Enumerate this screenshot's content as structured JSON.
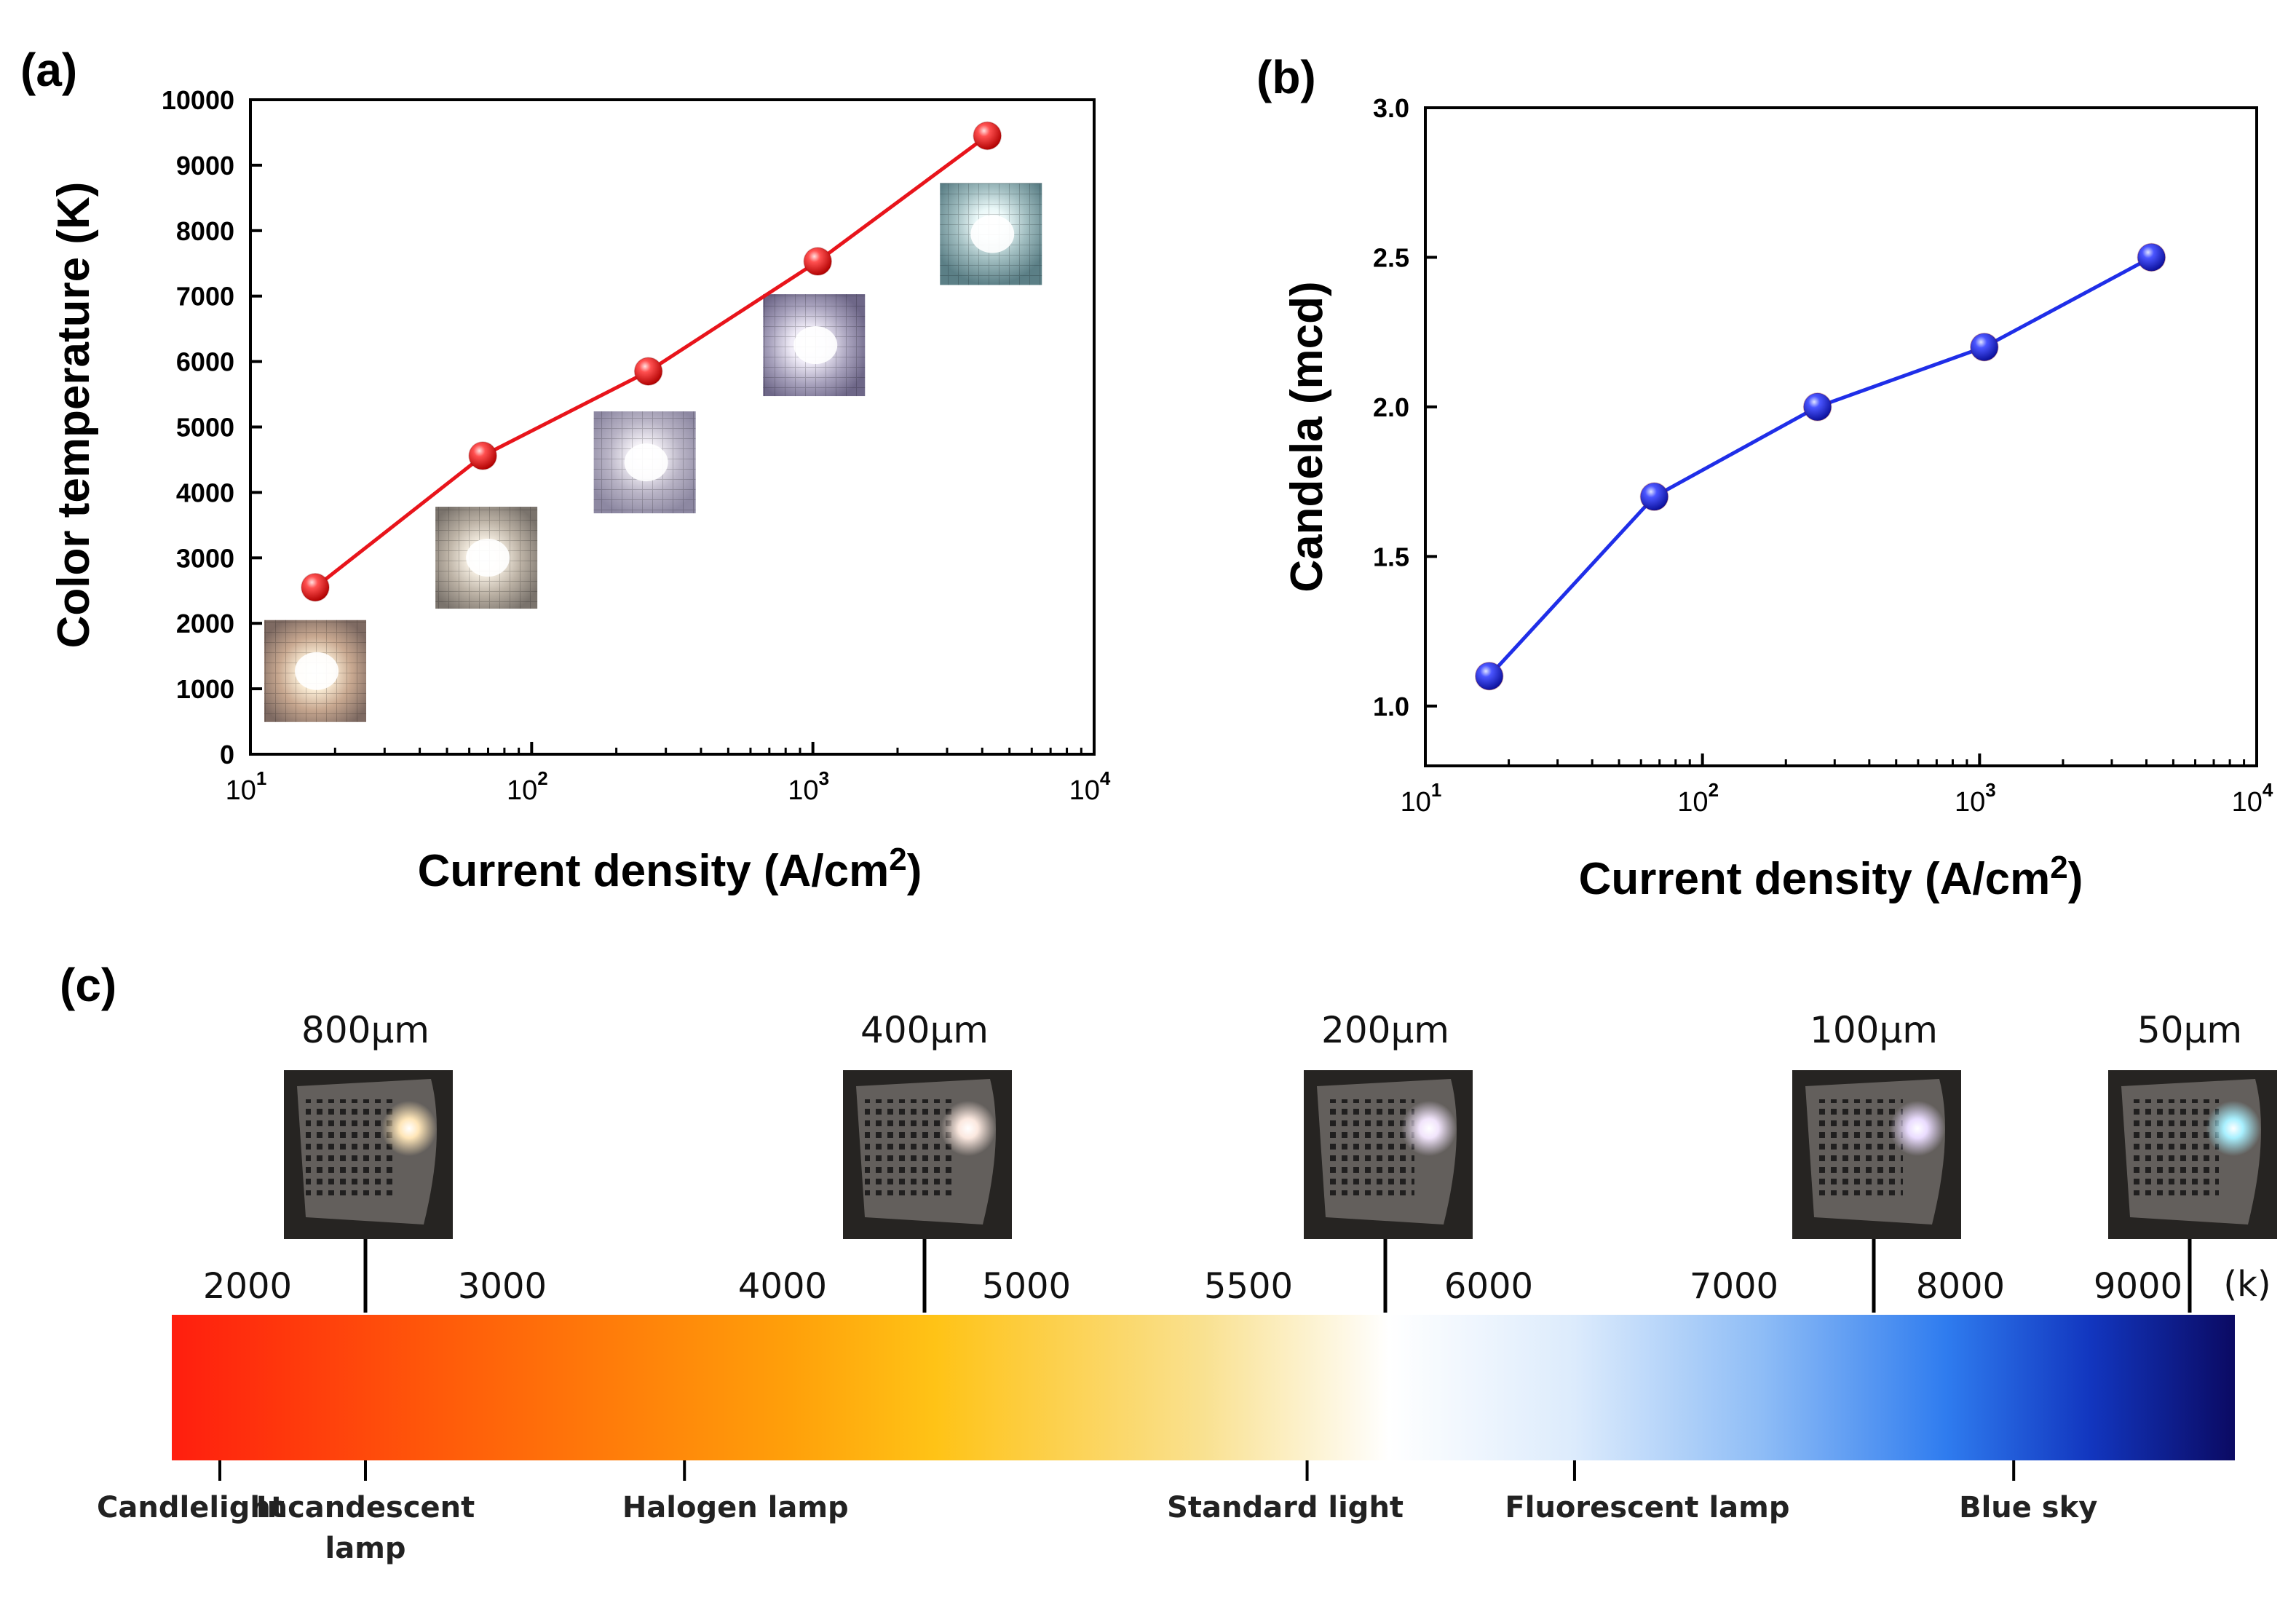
{
  "panels": {
    "a": "(a)",
    "b": "(b)",
    "c": "(c)"
  },
  "colors": {
    "series_a": "#e8141b",
    "series_b": "#1f2ee8",
    "axis": "#000000"
  },
  "chart_data": [
    {
      "id": "a",
      "type": "line",
      "title": "",
      "xlabel": "Current density (A/cm",
      "xlabel_sup": "2",
      "xlabel_end": ")",
      "ylabel": "Color temperature (K)",
      "xscale": "log",
      "xlim": [
        10,
        10000
      ],
      "ylim": [
        0,
        10000
      ],
      "x_ticks": [
        {
          "value": 10,
          "base": "10",
          "exp": "1"
        },
        {
          "value": 100,
          "base": "10",
          "exp": "2"
        },
        {
          "value": 1000,
          "base": "10",
          "exp": "3"
        },
        {
          "value": 10000,
          "base": "10",
          "exp": "4"
        }
      ],
      "y_ticks": [
        {
          "value": 0,
          "label": "0"
        },
        {
          "value": 1000,
          "label": "1000"
        },
        {
          "value": 2000,
          "label": "2000"
        },
        {
          "value": 3000,
          "label": "3000"
        },
        {
          "value": 4000,
          "label": "4000"
        },
        {
          "value": 5000,
          "label": "5000"
        },
        {
          "value": 6000,
          "label": "6000"
        },
        {
          "value": 7000,
          "label": "7000"
        },
        {
          "value": 8000,
          "label": "8000"
        },
        {
          "value": 9000,
          "label": "9000"
        },
        {
          "value": 10000,
          "label": "10000"
        }
      ],
      "series": [
        {
          "name": "Color temperature",
          "x": [
            17,
            67,
            260,
            1040,
            4170
          ],
          "y": [
            2550,
            4560,
            5850,
            7530,
            9450
          ]
        }
      ],
      "grid": false,
      "legend": "none",
      "insets": [
        "photo-inset-1",
        "photo-inset-2",
        "photo-inset-3",
        "photo-inset-4",
        "photo-inset-5"
      ]
    },
    {
      "id": "b",
      "type": "line",
      "title": "",
      "xlabel": "Current density (A/cm",
      "xlabel_sup": "2",
      "xlabel_end": ")",
      "ylabel": "Candela (mcd)",
      "xscale": "log",
      "xlim": [
        10,
        10000
      ],
      "ylim": [
        0.8,
        3.0
      ],
      "x_ticks": [
        {
          "value": 10,
          "base": "10",
          "exp": "1"
        },
        {
          "value": 100,
          "base": "10",
          "exp": "2"
        },
        {
          "value": 1000,
          "base": "10",
          "exp": "3"
        },
        {
          "value": 10000,
          "base": "10",
          "exp": "4"
        }
      ],
      "y_ticks": [
        {
          "value": 1.0,
          "label": "1.0"
        },
        {
          "value": 1.5,
          "label": "1.5"
        },
        {
          "value": 2.0,
          "label": "2.0"
        },
        {
          "value": 2.5,
          "label": "2.5"
        },
        {
          "value": 3.0,
          "label": "3.0"
        }
      ],
      "series": [
        {
          "name": "Candela",
          "x": [
            17,
            67,
            260,
            1040,
            4170
          ],
          "y": [
            1.1,
            1.7,
            2.0,
            2.2,
            2.5
          ]
        }
      ],
      "grid": false,
      "legend": "none"
    },
    {
      "id": "c",
      "type": "other",
      "title": "",
      "unit_label": "(k)",
      "temp_labels": [
        {
          "value": 2000,
          "label": "2000"
        },
        {
          "value": 3000,
          "label": "3000"
        },
        {
          "value": 4000,
          "label": "4000"
        },
        {
          "value": 5000,
          "label": "5000"
        },
        {
          "value": 5500,
          "label": "5500"
        },
        {
          "value": 6000,
          "label": "6000"
        },
        {
          "value": 7000,
          "label": "7000"
        },
        {
          "value": 8000,
          "label": "8000"
        },
        {
          "value": 9000,
          "label": "9000"
        }
      ],
      "device_sizes": [
        {
          "label": "800μm",
          "color_temp": 2550
        },
        {
          "label": "400μm",
          "color_temp": 4560
        },
        {
          "label": "200μm",
          "color_temp": 5850
        },
        {
          "label": "100μm",
          "color_temp": 7530
        },
        {
          "label": "50μm",
          "color_temp": 9450
        }
      ],
      "light_sources": [
        {
          "label": "Candlelight"
        },
        {
          "label": "Incandescent",
          "label2": "lamp"
        },
        {
          "label": "Halogen lamp"
        },
        {
          "label": "Standard light"
        },
        {
          "label": "Fluorescent lamp"
        },
        {
          "label": "Blue sky"
        }
      ],
      "gradient_stops": [
        {
          "offset": 0,
          "color": "#ff1e0e"
        },
        {
          "offset": 0.13,
          "color": "#ff5a0a"
        },
        {
          "offset": 0.3,
          "color": "#ffa00a"
        },
        {
          "offset": 0.37,
          "color": "#ffc316"
        },
        {
          "offset": 0.5,
          "color": "#f9e190"
        },
        {
          "offset": 0.59,
          "color": "#ffffff"
        },
        {
          "offset": 0.68,
          "color": "#dcebfc"
        },
        {
          "offset": 0.77,
          "color": "#8fbdf6"
        },
        {
          "offset": 0.86,
          "color": "#2f7cef"
        },
        {
          "offset": 0.93,
          "color": "#1236bf"
        },
        {
          "offset": 1,
          "color": "#0b0a63"
        }
      ]
    }
  ]
}
